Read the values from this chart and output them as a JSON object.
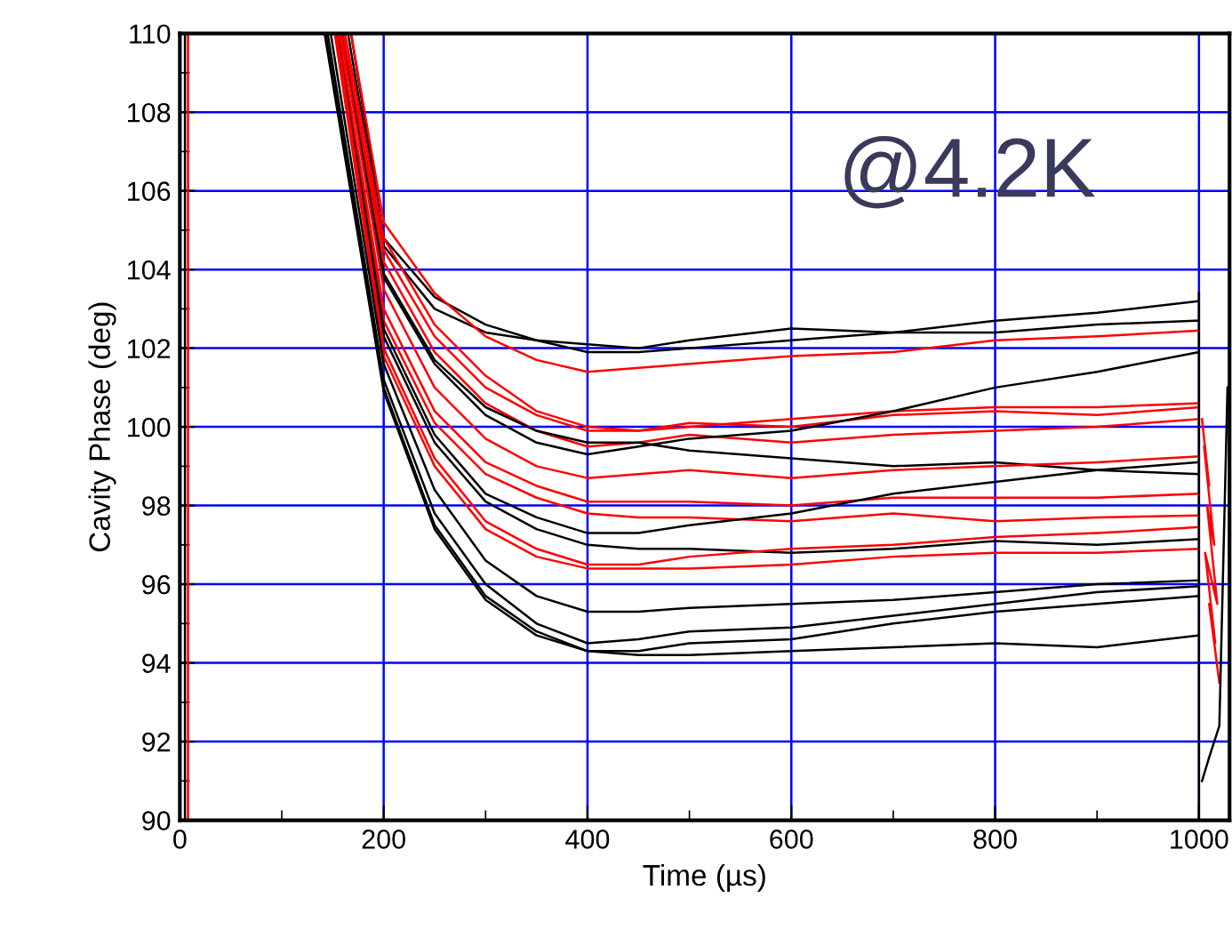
{
  "chart_data": {
    "type": "line",
    "xlabel": "Time (µs)",
    "ylabel": "Cavity Phase (deg)",
    "annotations": [
      "@4.2K"
    ],
    "xlim": [
      0,
      1030
    ],
    "ylim": [
      90,
      110
    ],
    "xticks": [
      0,
      200,
      400,
      600,
      800,
      1000
    ],
    "yticks": [
      90,
      92,
      94,
      96,
      98,
      100,
      102,
      104,
      106,
      108,
      110
    ],
    "grid": true,
    "legend": false,
    "marker": "none",
    "line_style": "solid",
    "series": [
      {
        "color": "#000000",
        "x": [
          5,
          5
        ],
        "values": [
          90,
          110
        ]
      },
      {
        "color": "#ff0000",
        "x": [
          8,
          8
        ],
        "values": [
          90,
          110
        ]
      },
      {
        "color": "#000000",
        "x": [
          165,
          200,
          250,
          300,
          350,
          400,
          450,
          500,
          600,
          700,
          800,
          900,
          1000
        ],
        "values": [
          110,
          104.6,
          103.0,
          102.4,
          102.2,
          102.1,
          102.0,
          102.2,
          102.5,
          102.4,
          102.7,
          102.9,
          103.2
        ]
      },
      {
        "color": "#000000",
        "x": [
          168,
          200,
          250,
          300,
          350,
          400,
          450,
          500,
          600,
          700,
          800,
          900,
          1000
        ],
        "values": [
          110,
          104.8,
          103.3,
          102.6,
          102.2,
          101.9,
          101.9,
          102.0,
          102.2,
          102.4,
          102.4,
          102.6,
          102.7
        ]
      },
      {
        "color": "#ff0000",
        "x": [
          168,
          200,
          250,
          300,
          350,
          400,
          450,
          500,
          600,
          700,
          800,
          900,
          1000
        ],
        "values": [
          110,
          105.2,
          103.4,
          102.3,
          101.7,
          101.4,
          101.5,
          101.6,
          101.8,
          101.9,
          102.2,
          102.3,
          102.45
        ]
      },
      {
        "color": "#ff0000",
        "x": [
          162,
          200,
          250,
          300,
          350,
          400,
          450,
          500,
          600,
          700,
          800,
          900,
          1000
        ],
        "values": [
          110,
          104.8,
          102.6,
          101.3,
          100.4,
          100.0,
          99.9,
          100.0,
          100.2,
          100.4,
          100.5,
          100.5,
          100.6
        ]
      },
      {
        "color": "#ff0000",
        "x": [
          160,
          200,
          250,
          300,
          350,
          400,
          450,
          500,
          600,
          700,
          800,
          900,
          1000
        ],
        "values": [
          110,
          104.5,
          102.3,
          101.0,
          100.3,
          99.9,
          99.9,
          100.1,
          100.0,
          100.3,
          100.4,
          100.3,
          100.5
        ]
      },
      {
        "color": "#ff0000",
        "x": [
          160,
          200,
          250,
          300,
          350,
          400,
          450,
          500,
          600,
          700,
          800,
          900,
          1000
        ],
        "values": [
          110,
          104.2,
          101.9,
          100.6,
          99.9,
          99.5,
          99.6,
          99.8,
          99.6,
          99.8,
          99.9,
          100.0,
          100.2
        ]
      },
      {
        "color": "#000000",
        "x": [
          158,
          200,
          250,
          300,
          350,
          400,
          450,
          500,
          600,
          700,
          800,
          900,
          1000
        ],
        "values": [
          110,
          103.8,
          101.6,
          100.3,
          99.6,
          99.3,
          99.5,
          99.7,
          99.9,
          100.4,
          101.0,
          101.4,
          101.9
        ]
      },
      {
        "color": "#000000",
        "x": [
          158,
          200,
          250,
          300,
          350,
          400,
          450,
          500,
          600,
          700,
          800,
          900,
          1000
        ],
        "values": [
          110,
          103.9,
          101.7,
          100.5,
          99.9,
          99.6,
          99.6,
          99.4,
          99.2,
          99.0,
          99.1,
          98.9,
          98.8
        ]
      },
      {
        "color": "#ff0000",
        "x": [
          158,
          200,
          250,
          300,
          350,
          400,
          450,
          500,
          600,
          700,
          800,
          900,
          1000
        ],
        "values": [
          110,
          103.5,
          101.0,
          99.7,
          99.0,
          98.7,
          98.8,
          98.9,
          98.7,
          98.9,
          99.0,
          99.1,
          99.25
        ]
      },
      {
        "color": "#ff0000",
        "x": [
          156,
          200,
          250,
          300,
          350,
          400,
          450,
          500,
          600,
          700,
          800,
          900,
          1000
        ],
        "values": [
          110,
          103.0,
          100.4,
          99.1,
          98.5,
          98.1,
          98.1,
          98.1,
          98.0,
          98.2,
          98.2,
          98.2,
          98.3
        ]
      },
      {
        "color": "#ff0000",
        "x": [
          156,
          200,
          250,
          300,
          350,
          400,
          450,
          500,
          600,
          700,
          800,
          900,
          1000
        ],
        "values": [
          110,
          102.7,
          100.1,
          98.8,
          98.2,
          97.8,
          97.7,
          97.7,
          97.6,
          97.8,
          97.6,
          97.7,
          97.75
        ]
      },
      {
        "color": "#000000",
        "x": [
          154,
          200,
          250,
          300,
          350,
          400,
          450,
          500,
          600,
          700,
          800,
          900,
          1000
        ],
        "values": [
          110,
          102.5,
          99.8,
          98.3,
          97.7,
          97.3,
          97.3,
          97.5,
          97.8,
          98.3,
          98.6,
          98.9,
          99.1
        ]
      },
      {
        "color": "#000000",
        "x": [
          154,
          200,
          250,
          300,
          350,
          400,
          450,
          500,
          600,
          700,
          800,
          900,
          1000
        ],
        "values": [
          110,
          102.3,
          99.6,
          98.1,
          97.4,
          97.0,
          96.9,
          96.9,
          96.8,
          96.9,
          97.1,
          97.0,
          97.15
        ]
      },
      {
        "color": "#ff0000",
        "x": [
          154,
          200,
          250,
          300,
          350,
          400,
          450,
          500,
          600,
          700,
          800,
          900,
          1000
        ],
        "values": [
          110,
          102.0,
          99.2,
          97.6,
          96.9,
          96.5,
          96.5,
          96.7,
          96.9,
          97.0,
          97.2,
          97.3,
          97.45
        ]
      },
      {
        "color": "#ff0000",
        "x": [
          152,
          200,
          250,
          300,
          350,
          400,
          450,
          500,
          600,
          700,
          800,
          900,
          1000
        ],
        "values": [
          110,
          101.8,
          99.0,
          97.4,
          96.7,
          96.4,
          96.4,
          96.4,
          96.5,
          96.7,
          96.8,
          96.8,
          96.9
        ]
      },
      {
        "color": "#000000",
        "x": [
          148,
          200,
          250,
          300,
          350,
          400,
          450,
          500,
          600,
          700,
          800,
          900,
          1000
        ],
        "values": [
          110,
          101.6,
          98.4,
          96.6,
          95.7,
          95.3,
          95.3,
          95.4,
          95.5,
          95.6,
          95.8,
          96.0,
          96.1
        ]
      },
      {
        "color": "#000000",
        "x": [
          145,
          200,
          250,
          300,
          350,
          400,
          450,
          500,
          600,
          700,
          800,
          900,
          1000
        ],
        "values": [
          110,
          101.2,
          97.8,
          96.0,
          95.0,
          94.5,
          94.6,
          94.8,
          94.9,
          95.2,
          95.5,
          95.8,
          95.95
        ]
      },
      {
        "color": "#000000",
        "x": [
          143,
          200,
          250,
          300,
          350,
          400,
          450,
          500,
          600,
          700,
          800,
          900,
          1000
        ],
        "values": [
          110,
          101.0,
          97.5,
          95.7,
          94.8,
          94.3,
          94.3,
          94.5,
          94.6,
          95.0,
          95.3,
          95.5,
          95.7
        ]
      },
      {
        "color": "#000000",
        "x": [
          142,
          200,
          250,
          300,
          350,
          400,
          450,
          500,
          600,
          700,
          800,
          900,
          1000
        ],
        "values": [
          110,
          100.9,
          97.4,
          95.6,
          94.7,
          94.3,
          94.2,
          94.2,
          94.3,
          94.4,
          94.5,
          94.4,
          94.7
        ]
      },
      {
        "color": "#000000",
        "x": [
          1000,
          1000
        ],
        "values": [
          90,
          103.4
        ]
      },
      {
        "color": "#ff0000",
        "x": [
          1003,
          1010,
          1005,
          1015,
          1008,
          1018,
          1006,
          1016,
          1010,
          1020
        ],
        "values": [
          100.2,
          98.5,
          99.5,
          97.0,
          98.0,
          95.5,
          96.8,
          94.5,
          95.5,
          93.5
        ]
      },
      {
        "color": "#000000",
        "x": [
          1003,
          1010,
          1020,
          1028
        ],
        "values": [
          91.0,
          91.6,
          92.4,
          101.0
        ]
      }
    ]
  }
}
